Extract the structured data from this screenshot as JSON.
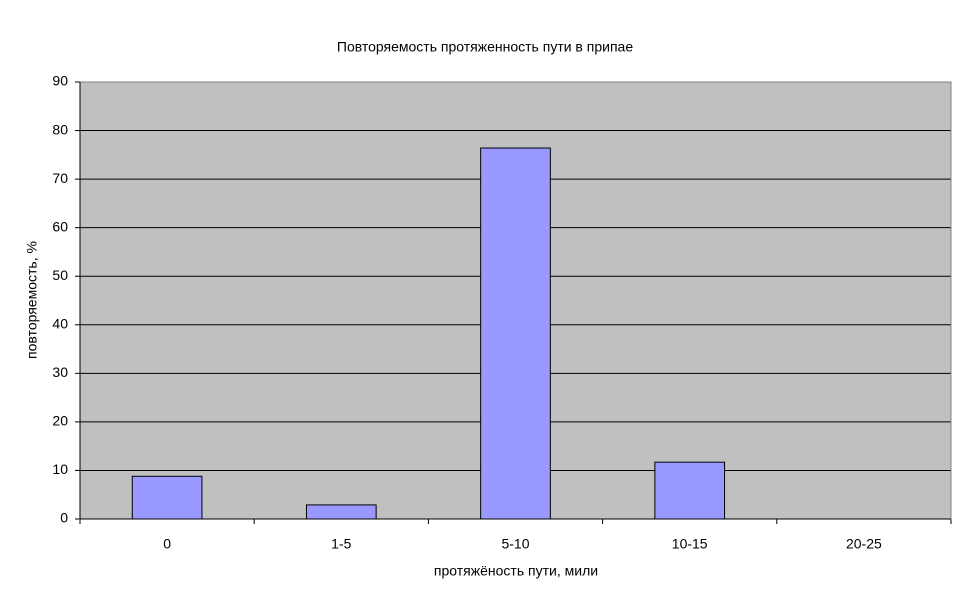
{
  "chart_data": {
    "type": "bar",
    "title": "Повторяемость протяженность пути в припае",
    "x_label": "протяжёность пути, мили",
    "y_label": "повторяемость, %",
    "categories": [
      "0",
      "1-5",
      "5-10",
      "10-15",
      "20-25"
    ],
    "values": [
      8.8,
      2.9,
      76.4,
      11.7,
      0
    ],
    "color": "#9999ff",
    "ylim": [
      0,
      90
    ],
    "yticks": [
      0,
      10,
      20,
      30,
      40,
      50,
      60,
      70,
      80,
      90
    ],
    "grid": true
  }
}
